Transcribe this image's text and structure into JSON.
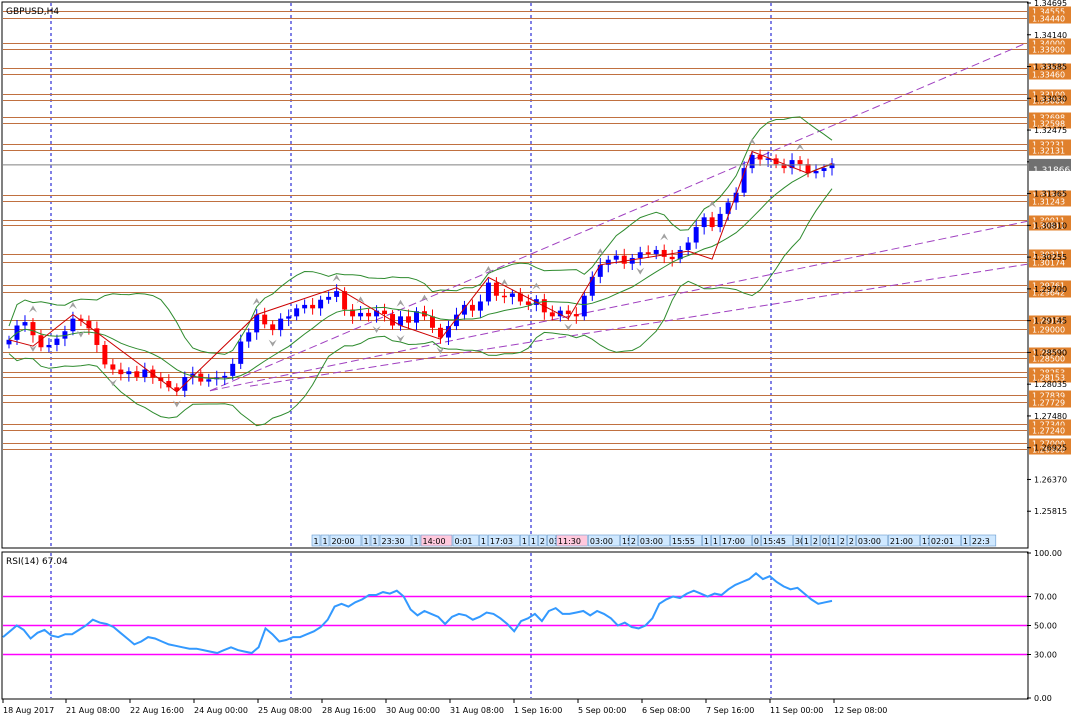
{
  "chart_data": {
    "type": "candlestick",
    "title": "GBPUSD,H4",
    "symbol": "GBPUSD",
    "timeframe": "H4",
    "current_price": "1.31866",
    "ylim": [
      1.2519,
      1.34695
    ],
    "price_axis_ticks": [
      "1.34695",
      "1.34140",
      "1.33585",
      "1.33030",
      "1.32475",
      "1.31920",
      "1.31365",
      "1.30810",
      "1.30255",
      "1.29700",
      "1.29145",
      "1.28590",
      "1.28035",
      "1.27480",
      "1.26925",
      "1.26370",
      "1.25815"
    ],
    "date_labels": [
      "18 Aug 2017",
      "21 Aug 08:00",
      "22 Aug 16:00",
      "24 Aug 00:00",
      "25 Aug 08:00",
      "28 Aug 16:00",
      "30 Aug 00:00",
      "31 Aug 08:00",
      "1 Sep 16:00",
      "5 Sep 00:00",
      "6 Sep 08:00",
      "7 Sep 16:00",
      "11 Sep 00:00",
      "12 Sep 08:00"
    ],
    "horizontal_levels": [
      {
        "label": "1.34555",
        "value": 1.34555
      },
      {
        "label": "1.34440",
        "value": 1.3444
      },
      {
        "label": "1.34000",
        "value": 1.34
      },
      {
        "label": "1.33900",
        "value": 1.339
      },
      {
        "label": "1.33560",
        "value": 1.3356
      },
      {
        "label": "1.33460",
        "value": 1.3346
      },
      {
        "label": "1.33100",
        "value": 1.331
      },
      {
        "label": "1.33000",
        "value": 1.33
      },
      {
        "label": "1.32698",
        "value": 1.32698
      },
      {
        "label": "1.32598",
        "value": 1.32598
      },
      {
        "label": "1.32231",
        "value": 1.32231
      },
      {
        "label": "1.32131",
        "value": 1.32131
      },
      {
        "label": "1.31343",
        "value": 1.31343
      },
      {
        "label": "1.31243",
        "value": 1.31243
      },
      {
        "label": "1.30911",
        "value": 1.30911
      },
      {
        "label": "1.30811",
        "value": 1.30811
      },
      {
        "label": "1.30311",
        "value": 1.30311
      },
      {
        "label": "1.30174",
        "value": 1.30174
      },
      {
        "label": "1.29761",
        "value": 1.29761
      },
      {
        "label": "1.29642",
        "value": 1.29642
      },
      {
        "label": "1.29152",
        "value": 1.29152
      },
      {
        "label": "1.29000",
        "value": 1.29
      },
      {
        "label": "1.28600",
        "value": 1.286
      },
      {
        "label": "1.28500",
        "value": 1.285
      },
      {
        "label": "1.28253",
        "value": 1.28253
      },
      {
        "label": "1.28153",
        "value": 1.28153
      },
      {
        "label": "1.27839",
        "value": 1.27839
      },
      {
        "label": "1.27729",
        "value": 1.27729
      },
      {
        "label": "1.27340",
        "value": 1.2734
      },
      {
        "label": "1.27240",
        "value": 1.2724
      },
      {
        "label": "1.27000",
        "value": 1.27
      },
      {
        "label": "1.26900",
        "value": 1.269
      }
    ],
    "close_series": [
      1.2881,
      1.2906,
      1.2912,
      1.2889,
      1.2868,
      1.2872,
      1.2883,
      1.2896,
      1.2918,
      1.2914,
      1.2901,
      1.2872,
      1.2838,
      1.2829,
      1.2821,
      1.2826,
      1.2816,
      1.2829,
      1.2815,
      1.2809,
      1.2798,
      1.2792,
      1.2816,
      1.2822,
      1.2808,
      1.2812,
      1.2815,
      1.2818,
      1.2839,
      1.2878,
      1.2894,
      1.2925,
      1.2908,
      1.2898,
      1.2918,
      1.2922,
      1.2936,
      1.2942,
      1.2936,
      1.2951,
      1.2956,
      1.2966,
      1.2934,
      1.2922,
      1.2928,
      1.2922,
      1.2932,
      1.2926,
      1.2906,
      1.2922,
      1.2911,
      1.2931,
      1.2922,
      1.2902,
      1.2885,
      1.2905,
      1.2925,
      1.2942,
      1.2932,
      1.2948,
      1.2981,
      1.2958,
      1.2956,
      1.2962,
      1.2948,
      1.2942,
      1.2952,
      1.2929,
      1.2922,
      1.2932,
      1.2926,
      1.2922,
      1.2958,
      1.2991,
      1.3012,
      1.3021,
      1.3028,
      1.3014,
      1.3024,
      1.3034,
      1.3031,
      1.3038,
      1.3026,
      1.3022,
      1.3038,
      1.3051,
      1.3078,
      1.3095,
      1.3078,
      1.3101,
      1.3121,
      1.3138,
      1.3181,
      1.3204,
      1.3196,
      1.3198,
      1.3188,
      1.3181,
      1.3195,
      1.3188,
      1.3172,
      1.3176,
      1.3181,
      1.3189
    ],
    "rsi": {
      "label": "RSI(14) 67.04",
      "ylim": [
        0,
        100
      ],
      "levels": [
        30,
        50,
        70
      ],
      "tick_labels": [
        "100.00",
        "70.00",
        "50.00",
        "30.00",
        "0.00"
      ],
      "values": [
        42,
        46,
        50,
        47,
        41,
        45,
        47,
        43,
        42,
        44,
        44,
        47,
        50,
        54,
        52,
        51,
        49,
        45,
        41,
        37,
        39,
        42,
        41,
        39,
        37,
        36,
        35,
        34,
        34,
        33,
        32,
        31,
        33,
        35,
        33,
        32,
        31,
        35,
        48,
        44,
        39,
        40,
        42,
        42,
        44,
        46,
        49,
        54,
        63,
        65,
        63,
        66,
        68,
        71,
        71,
        73,
        72,
        74,
        70,
        61,
        57,
        60,
        58,
        56,
        51,
        56,
        58,
        57,
        54,
        56,
        59,
        58,
        55,
        51,
        46,
        53,
        55,
        58,
        53,
        60,
        62,
        58,
        58,
        59,
        60,
        57,
        60,
        58,
        55,
        50,
        52,
        49,
        48,
        50,
        55,
        65,
        68,
        70,
        69,
        72,
        74,
        72,
        70,
        72,
        71,
        75,
        78,
        80,
        82,
        86,
        82,
        84,
        80,
        77,
        75,
        76,
        72,
        68,
        65,
        66,
        67
      ]
    }
  },
  "time_badges": [
    "1",
    "1",
    "20:00",
    "1",
    "1",
    "23:30",
    "1",
    "14:00",
    "0:01",
    "1",
    "17:03",
    "1",
    "1",
    "2",
    "03",
    "11:30",
    "03:00",
    "15",
    "2",
    "03:00",
    "15:55",
    "1",
    "1",
    "17:00",
    "0",
    "15:45",
    "30",
    "1",
    "2",
    "03",
    "1",
    "2",
    "2",
    "03:00",
    "21:00",
    "17",
    "02:01",
    "1",
    "22:3"
  ],
  "colors": {
    "background": "#ffffff",
    "grid": "#0000cc",
    "up_candle": "#0000ff",
    "down_candle": "#ff0000",
    "level_line": "#c07040",
    "level_box": "#e0802c",
    "bollinger": "#2e8b2e",
    "channel": "#a040c0",
    "zigzag": "#cc0000",
    "rsi_line": "#3399ff",
    "rsi_level": "#ff00ff",
    "fractal": "#a0a0a0"
  }
}
